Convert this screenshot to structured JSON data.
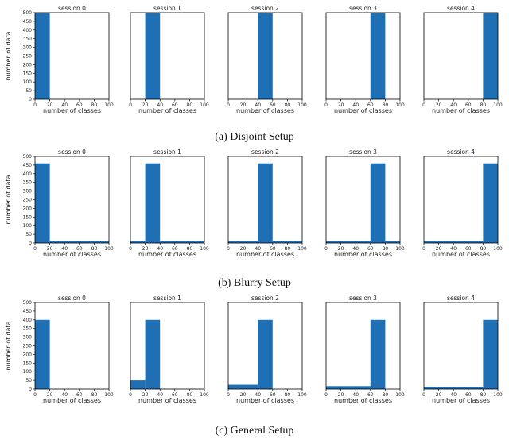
{
  "colors": {
    "bar": "#1f6fb4",
    "axis": "#000000"
  },
  "captions": [
    "(a) Disjoint Setup",
    "(b) Blurry Setup",
    "(c) General Setup"
  ],
  "chart_data": [
    {
      "type": "bar",
      "setup": "(a) Disjoint Setup",
      "xlabel": "number of classes",
      "ylabel": "number of data",
      "xlim": [
        0,
        100
      ],
      "ylim": [
        0,
        500
      ],
      "xticks": [
        0,
        20,
        40,
        60,
        80,
        100
      ],
      "yticks": [
        0,
        50,
        100,
        150,
        200,
        250,
        300,
        350,
        400,
        450,
        500
      ],
      "panels": [
        {
          "title": "session 0",
          "bars": [
            {
              "x0": 0,
              "x1": 20,
              "value": 500
            }
          ]
        },
        {
          "title": "session 1",
          "bars": [
            {
              "x0": 20,
              "x1": 40,
              "value": 500
            }
          ]
        },
        {
          "title": "session 2",
          "bars": [
            {
              "x0": 40,
              "x1": 60,
              "value": 500
            }
          ]
        },
        {
          "title": "session 3",
          "bars": [
            {
              "x0": 60,
              "x1": 80,
              "value": 500
            }
          ]
        },
        {
          "title": "session 4",
          "bars": [
            {
              "x0": 80,
              "x1": 100,
              "value": 500
            }
          ]
        }
      ]
    },
    {
      "type": "bar",
      "setup": "(b) Blurry Setup",
      "xlabel": "number of classes",
      "ylabel": "number of data",
      "xlim": [
        0,
        100
      ],
      "ylim": [
        0,
        500
      ],
      "xticks": [
        0,
        20,
        40,
        60,
        80,
        100
      ],
      "yticks": [
        0,
        50,
        100,
        150,
        200,
        250,
        300,
        350,
        400,
        450,
        500
      ],
      "panels": [
        {
          "title": "session 0",
          "bars": [
            {
              "x0": 0,
              "x1": 20,
              "value": 460
            },
            {
              "x0": 20,
              "x1": 100,
              "value": 10
            }
          ]
        },
        {
          "title": "session 1",
          "bars": [
            {
              "x0": 0,
              "x1": 20,
              "value": 10
            },
            {
              "x0": 20,
              "x1": 40,
              "value": 460
            },
            {
              "x0": 40,
              "x1": 100,
              "value": 10
            }
          ]
        },
        {
          "title": "session 2",
          "bars": [
            {
              "x0": 0,
              "x1": 40,
              "value": 10
            },
            {
              "x0": 40,
              "x1": 60,
              "value": 460
            },
            {
              "x0": 60,
              "x1": 100,
              "value": 10
            }
          ]
        },
        {
          "title": "session 3",
          "bars": [
            {
              "x0": 0,
              "x1": 60,
              "value": 10
            },
            {
              "x0": 60,
              "x1": 80,
              "value": 460
            },
            {
              "x0": 80,
              "x1": 100,
              "value": 10
            }
          ]
        },
        {
          "title": "session 4",
          "bars": [
            {
              "x0": 0,
              "x1": 80,
              "value": 10
            },
            {
              "x0": 80,
              "x1": 100,
              "value": 460
            }
          ]
        }
      ]
    },
    {
      "type": "bar",
      "setup": "(c) General Setup",
      "xlabel": "number of classes",
      "ylabel": "number of data",
      "xlim": [
        0,
        100
      ],
      "ylim": [
        0,
        500
      ],
      "xticks": [
        0,
        20,
        40,
        60,
        80,
        100
      ],
      "yticks": [
        0,
        50,
        100,
        150,
        200,
        250,
        300,
        350,
        400,
        450,
        500
      ],
      "panels": [
        {
          "title": "session 0",
          "bars": [
            {
              "x0": 0,
              "x1": 20,
              "value": 400
            }
          ]
        },
        {
          "title": "session 1",
          "bars": [
            {
              "x0": 0,
              "x1": 20,
              "value": 50
            },
            {
              "x0": 20,
              "x1": 40,
              "value": 400
            }
          ]
        },
        {
          "title": "session 2",
          "bars": [
            {
              "x0": 0,
              "x1": 40,
              "value": 25
            },
            {
              "x0": 40,
              "x1": 60,
              "value": 400
            }
          ]
        },
        {
          "title": "session 3",
          "bars": [
            {
              "x0": 0,
              "x1": 60,
              "value": 17
            },
            {
              "x0": 60,
              "x1": 80,
              "value": 400
            }
          ]
        },
        {
          "title": "session 4",
          "bars": [
            {
              "x0": 0,
              "x1": 80,
              "value": 12
            },
            {
              "x0": 80,
              "x1": 100,
              "value": 400
            }
          ]
        }
      ]
    }
  ]
}
